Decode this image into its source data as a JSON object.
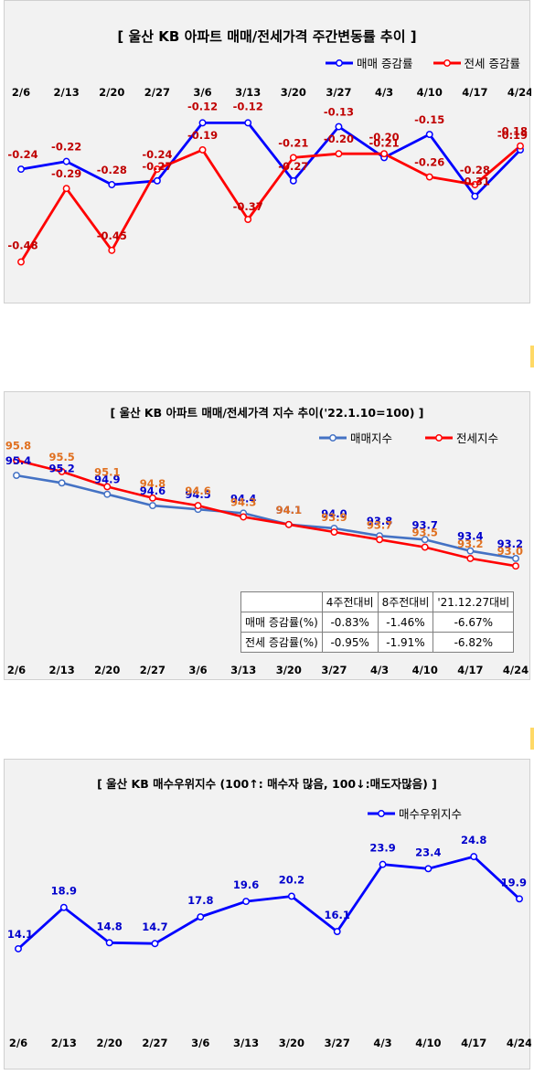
{
  "charts": [
    {
      "title": "[  울산  KB 아파트 매매/전세가격 주간변동률 추이  ]",
      "chart_data": {
        "type": "line",
        "categories": [
          "2/6",
          "2/13",
          "2/20",
          "2/27",
          "3/6",
          "3/13",
          "3/20",
          "3/27",
          "4/3",
          "4/10",
          "4/17",
          "4/24"
        ],
        "series": [
          {
            "name": "매매 증감률",
            "color": "#0000ff",
            "label_color": "#c00000",
            "values": [
              -0.24,
              -0.22,
              -0.28,
              -0.27,
              -0.12,
              -0.12,
              -0.27,
              -0.13,
              -0.21,
              -0.15,
              -0.31,
              -0.19
            ],
            "labels": [
              "-0.24",
              "-0.22",
              "-0.28",
              "-0.27",
              "-0.12",
              "-0.12",
              "-0.27",
              "-0.13",
              "-0.21",
              "-0.15",
              "-0.31",
              "-0.19"
            ]
          },
          {
            "name": "전세 증감률",
            "color": "#ff0000",
            "label_color": "#c00000",
            "values": [
              -0.48,
              -0.29,
              -0.45,
              -0.24,
              -0.19,
              -0.37,
              -0.21,
              -0.2,
              -0.2,
              -0.26,
              -0.28,
              -0.18
            ],
            "labels": [
              "-0.48",
              "-0.29",
              "-0.45",
              "-0.24",
              "-0.19",
              "-0.37",
              "-0.21",
              "-0.20",
              "-0.20",
              "-0.26",
              "-0.28",
              "-0.18"
            ]
          }
        ],
        "ylim": [
          -0.5,
          -0.06
        ],
        "legend": "top-right",
        "grid": false
      }
    },
    {
      "title": "[  울산  KB 아파트 매매/전세가격 지수 추이('22.1.10=100)  ]",
      "chart_data": {
        "type": "line",
        "categories": [
          "2/6",
          "2/13",
          "2/20",
          "2/27",
          "3/6",
          "3/13",
          "3/20",
          "3/27",
          "4/3",
          "4/10",
          "4/17",
          "4/24"
        ],
        "series": [
          {
            "name": "매매지수",
            "color": "#4472c4",
            "label_color": "#0000cc",
            "values": [
              95.4,
              95.2,
              94.9,
              94.6,
              94.5,
              94.4,
              94.1,
              94.0,
              93.8,
              93.7,
              93.4,
              93.2
            ],
            "labels": [
              "95.4",
              "95.2",
              "94.9",
              "94.6",
              "94.5",
              "94.4",
              "94.1",
              "94.0",
              "93.8",
              "93.7",
              "93.4",
              "93.2"
            ]
          },
          {
            "name": "전세지수",
            "color": "#ff0000",
            "label_color": "#e07020",
            "values": [
              95.8,
              95.5,
              95.1,
              94.8,
              94.6,
              94.3,
              94.1,
              93.9,
              93.7,
              93.5,
              93.2,
              93.0
            ],
            "labels": [
              "95.8",
              "95.5",
              "95.1",
              "94.8",
              "94.6",
              "94.3",
              "94.1",
              "93.9",
              "93.7",
              "93.5",
              "93.2",
              "93.0"
            ]
          }
        ],
        "ylim": [
          92.4,
          96.2
        ],
        "legend": "top-right",
        "grid": false
      },
      "summary_table": {
        "headers": [
          "",
          "4주전대비",
          "8주전대비",
          "'21.12.27대비"
        ],
        "rows": [
          [
            "매매 증감률(%)",
            "-0.83%",
            "-1.46%",
            "-6.67%"
          ],
          [
            "전세 증감률(%)",
            "-0.95%",
            "-1.91%",
            "-6.82%"
          ]
        ]
      }
    },
    {
      "title": "[  울산  KB 매수우위지수 (100↑: 매수자 많음, 100↓:매도자많음)  ]",
      "chart_data": {
        "type": "line",
        "categories": [
          "2/6",
          "2/13",
          "2/20",
          "2/27",
          "3/6",
          "3/13",
          "3/20",
          "3/27",
          "4/3",
          "4/10",
          "4/17",
          "4/24"
        ],
        "series": [
          {
            "name": "매수우위지수",
            "color": "#0000ff",
            "label_color": "#0000cc",
            "values": [
              14.1,
              18.9,
              14.8,
              14.7,
              17.8,
              19.6,
              20.2,
              16.1,
              23.9,
              23.4,
              24.8,
              19.9
            ],
            "labels": [
              "14.1",
              "18.9",
              "14.8",
              "14.7",
              "17.8",
              "19.6",
              "20.2",
              "16.1",
              "23.9",
              "23.4",
              "24.8",
              "19.9"
            ]
          }
        ],
        "ylim": [
          4,
          28
        ],
        "legend": "top-right",
        "grid": false
      }
    }
  ]
}
